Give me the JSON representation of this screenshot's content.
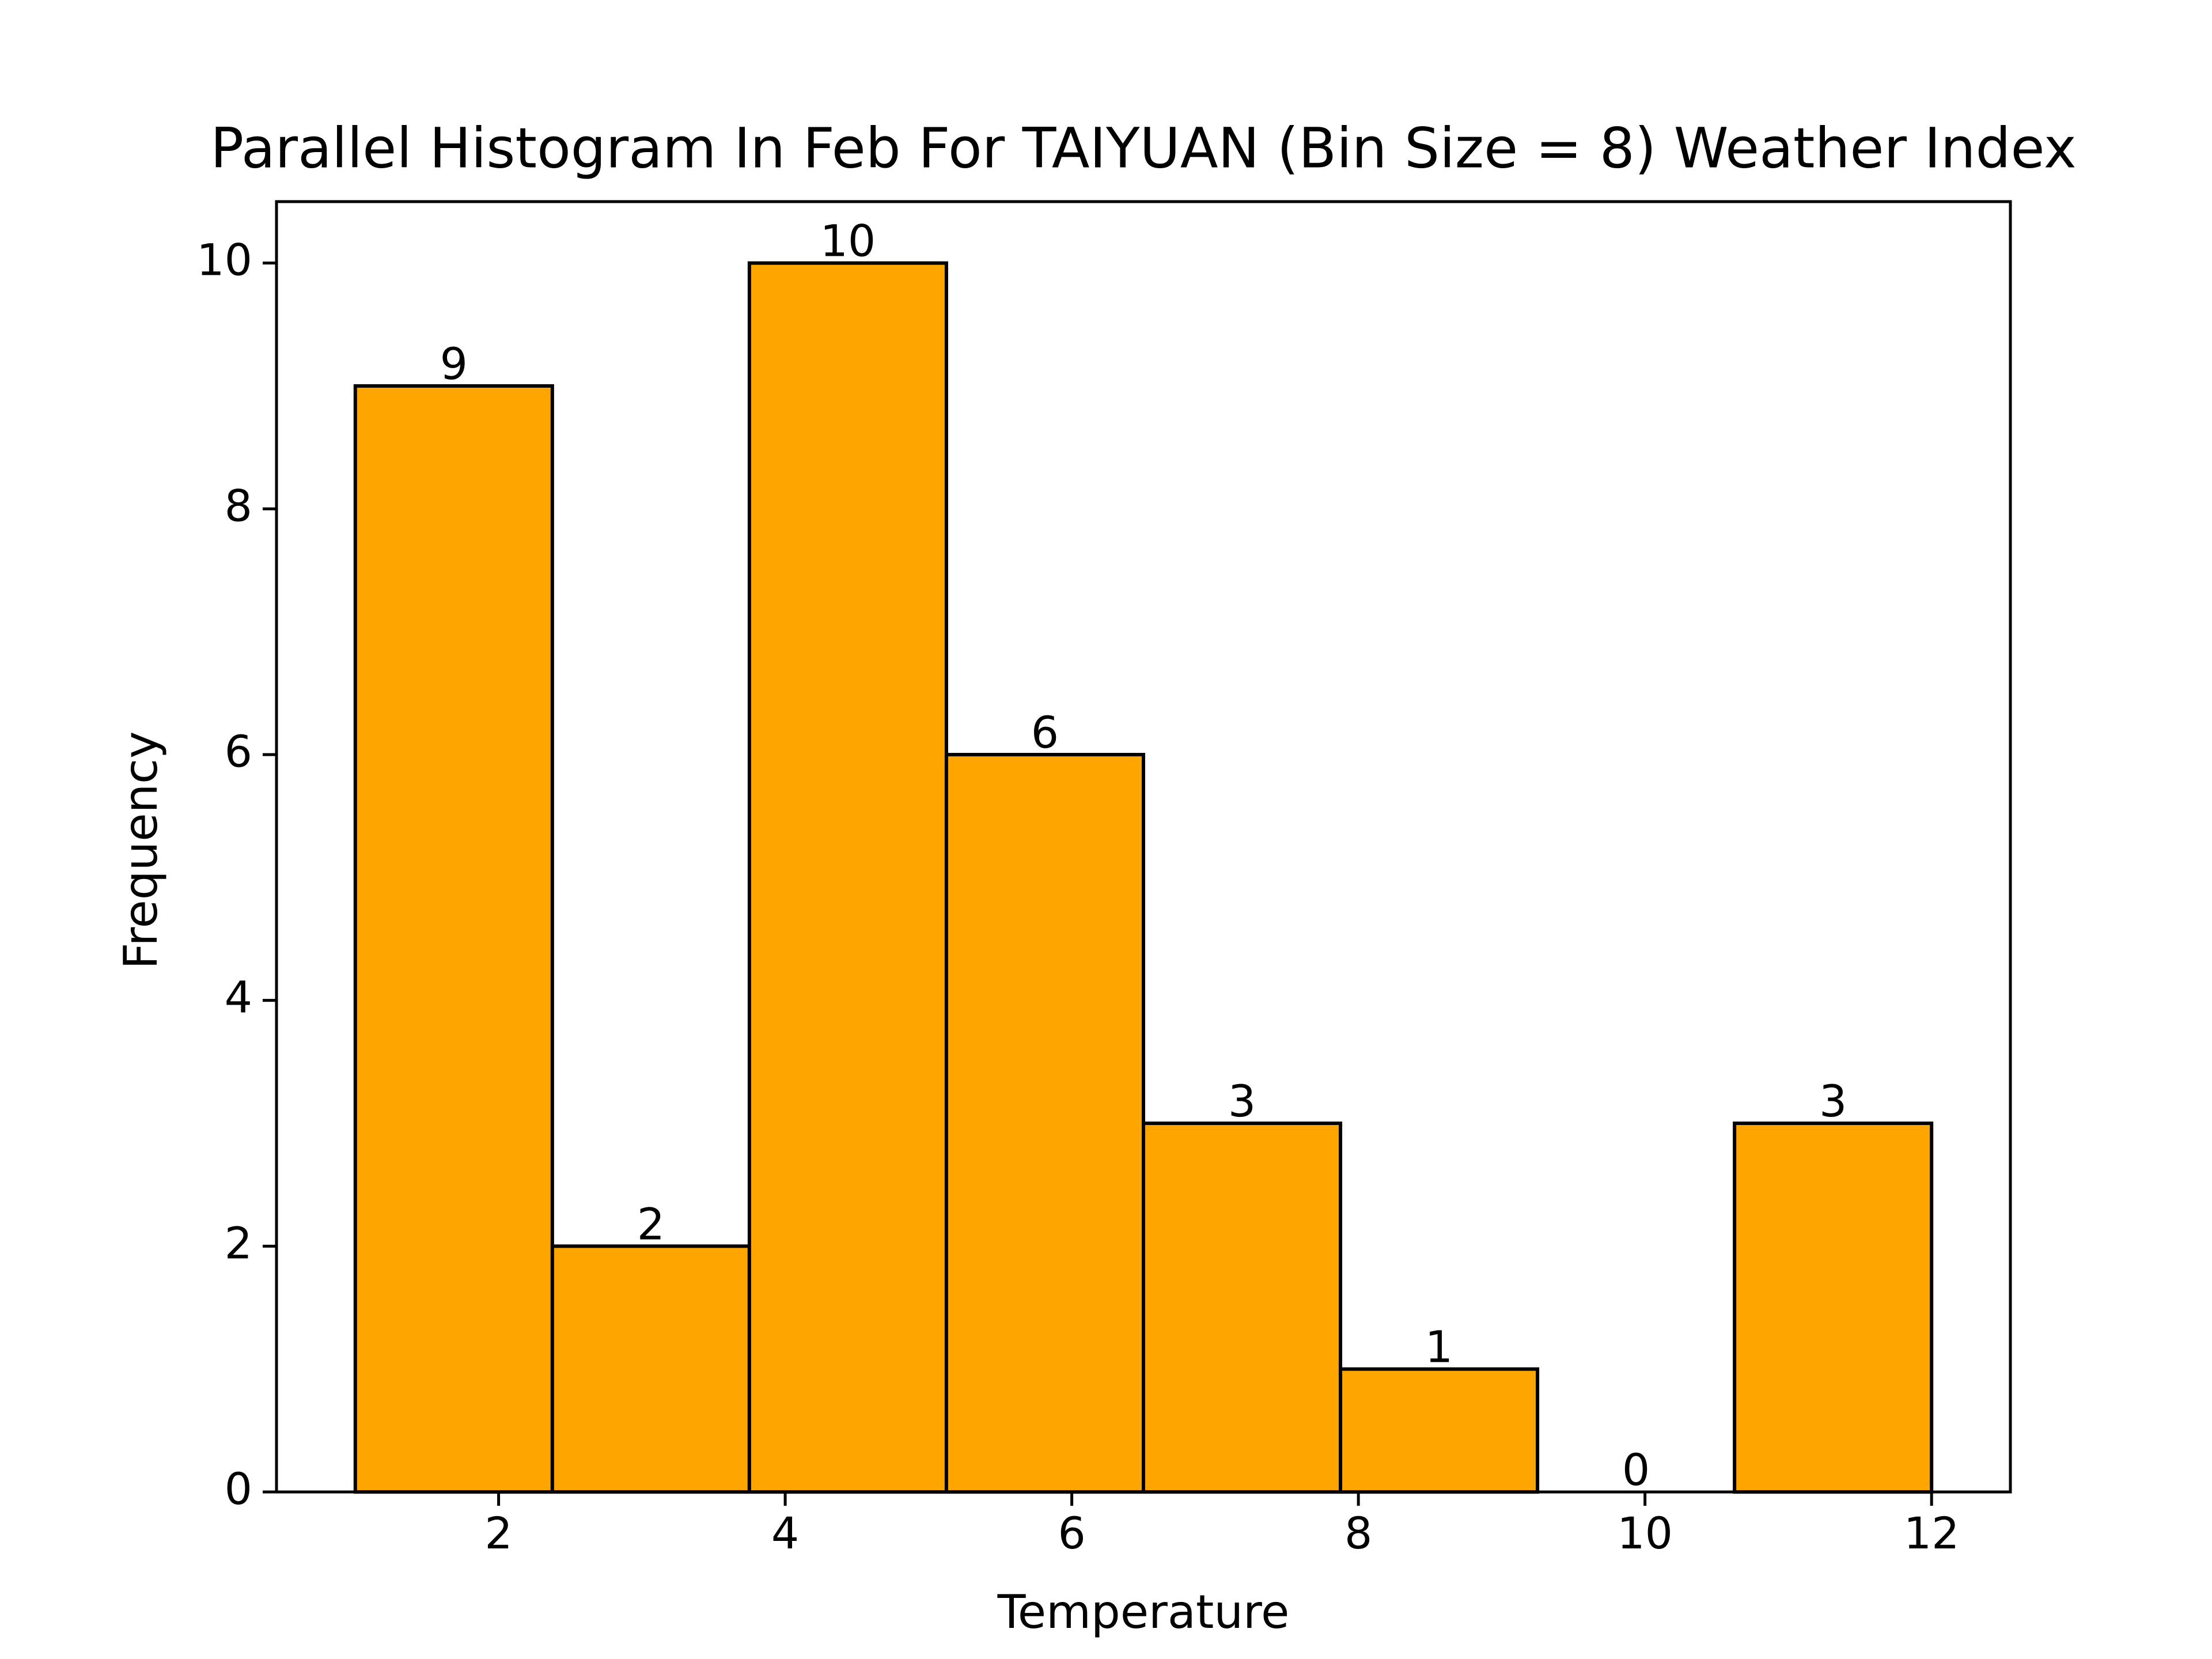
{
  "chart_data": {
    "type": "bar",
    "title": "Parallel Histogram In Feb For TAIYUAN (Bin Size = 8) Weather Index",
    "xlabel": "Temperature",
    "ylabel": "Frequency",
    "bins": [
      {
        "start": 1.0,
        "end": 2.375,
        "value": 9
      },
      {
        "start": 2.375,
        "end": 3.75,
        "value": 2
      },
      {
        "start": 3.75,
        "end": 5.125,
        "value": 10
      },
      {
        "start": 5.125,
        "end": 6.5,
        "value": 6
      },
      {
        "start": 6.5,
        "end": 7.875,
        "value": 3
      },
      {
        "start": 7.875,
        "end": 9.25,
        "value": 1
      },
      {
        "start": 9.25,
        "end": 10.625,
        "value": 0
      },
      {
        "start": 10.625,
        "end": 12.0,
        "value": 3
      }
    ],
    "xlim": [
      0.45,
      12.55
    ],
    "ylim": [
      0,
      10.5
    ],
    "xticks": [
      2,
      4,
      6,
      8,
      10,
      12
    ],
    "yticks": [
      0,
      2,
      4,
      6,
      8,
      10
    ],
    "bar_color": "#ffa500",
    "edge_color": "#000000",
    "grid": false
  }
}
